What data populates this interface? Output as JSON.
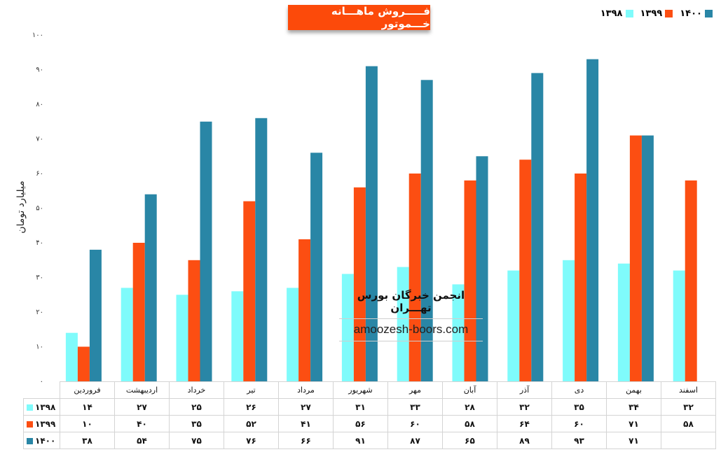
{
  "chart_data": {
    "type": "bar",
    "title": "فـــــروش  ماهـــانه خـــموتور",
    "ylabel": "میلیارد تومان",
    "ylim": [
      0,
      100
    ],
    "yticks": [
      "۰",
      "۱۰",
      "۲۰",
      "۳۰",
      "۴۰",
      "۵۰",
      "۶۰",
      "۷۰",
      "۸۰",
      "۹۰",
      "۱۰۰"
    ],
    "categories": [
      "فروردین",
      "اردیبهشت",
      "خرداد",
      "تیر",
      "مرداد",
      "شهریور",
      "مهر",
      "آبان",
      "آذر",
      "دی",
      "بهمن",
      "اسفند"
    ],
    "series": [
      {
        "name": "۱۳۹۸",
        "color": "#7ffbfb",
        "values": [
          14,
          27,
          25,
          26,
          27,
          31,
          33,
          28,
          32,
          35,
          34,
          32
        ],
        "labels": [
          "۱۴",
          "۲۷",
          "۲۵",
          "۲۶",
          "۲۷",
          "۳۱",
          "۳۳",
          "۲۸",
          "۳۲",
          "۳۵",
          "۳۴",
          "۳۲"
        ]
      },
      {
        "name": "۱۳۹۹",
        "color": "#fc4e12",
        "values": [
          10,
          40,
          35,
          52,
          41,
          56,
          60,
          58,
          64,
          60,
          71,
          58
        ],
        "labels": [
          "۱۰",
          "۴۰",
          "۳۵",
          "۵۲",
          "۴۱",
          "۵۶",
          "۶۰",
          "۵۸",
          "۶۴",
          "۶۰",
          "۷۱",
          "۵۸"
        ]
      },
      {
        "name": "۱۴۰۰",
        "color": "#2986a6",
        "values": [
          38,
          54,
          75,
          76,
          66,
          91,
          87,
          65,
          89,
          93,
          71,
          null
        ],
        "labels": [
          "۳۸",
          "۵۴",
          "۷۵",
          "۷۶",
          "۶۶",
          "۹۱",
          "۸۷",
          "۶۵",
          "۸۹",
          "۹۳",
          "۷۱",
          ""
        ]
      }
    ],
    "legend_position": "top-right",
    "grid": false
  },
  "watermark": {
    "line1": "انجمن خبرگان بورس تهـــران",
    "line2": "amoozesh-boors.com"
  }
}
